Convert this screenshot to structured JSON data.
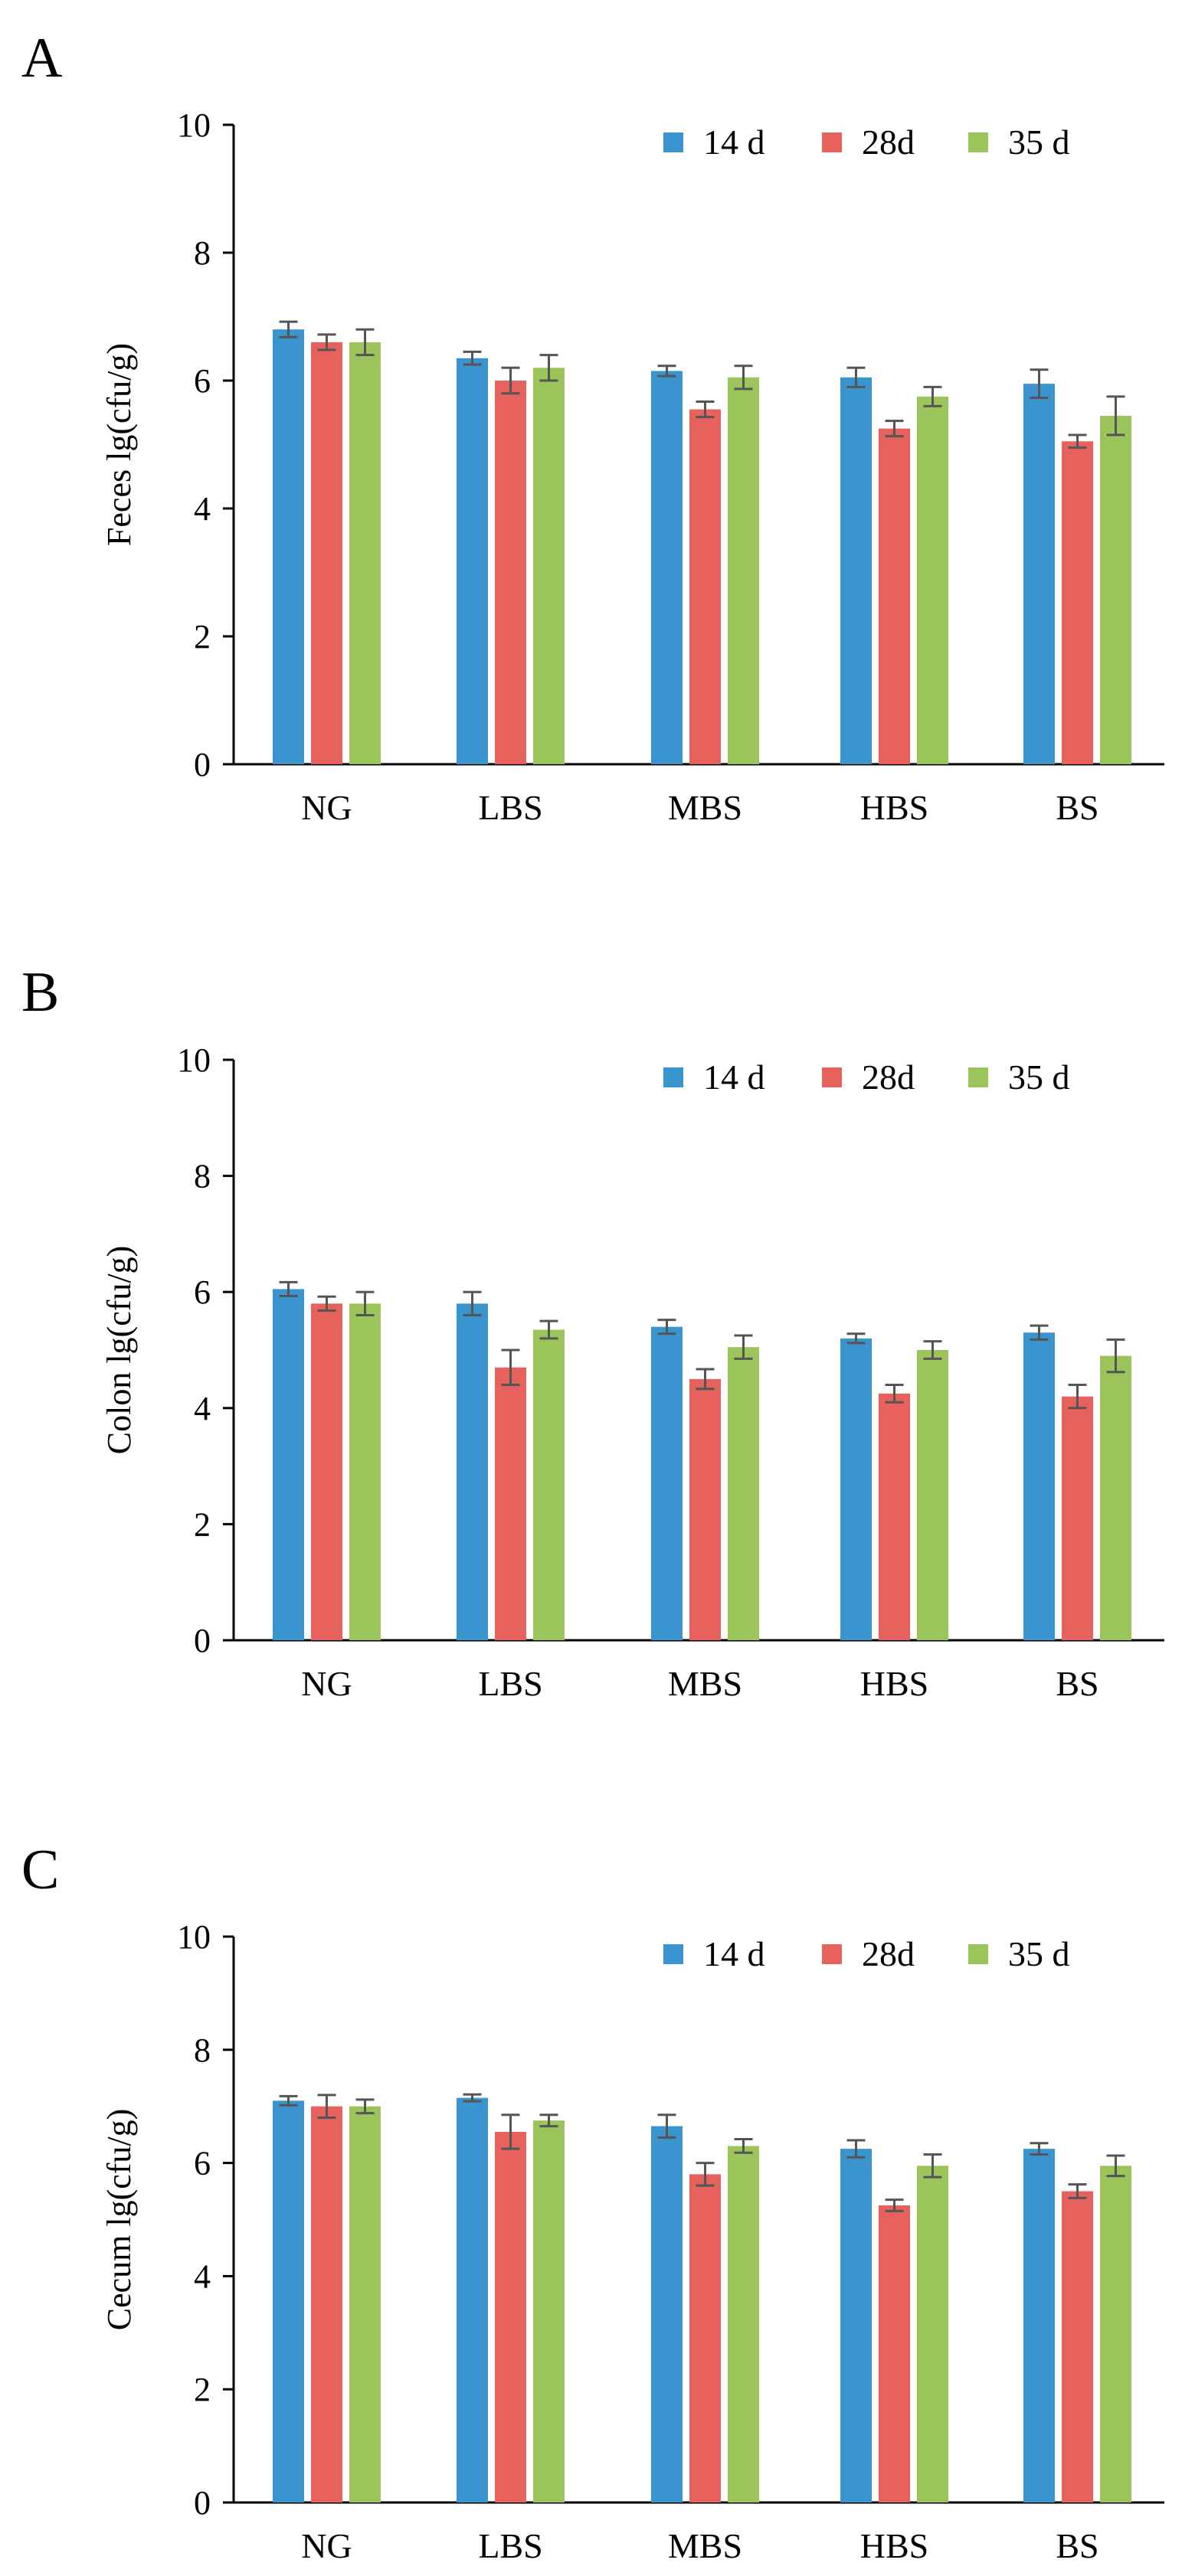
{
  "colors": {
    "series_14d": "#3a95cf",
    "series_28d": "#e8625d",
    "series_35d": "#9bc45b",
    "error_bar": "#555555",
    "axis": "#000000"
  },
  "chart_data": [
    {
      "type": "bar",
      "panel": "A",
      "ylabel": "Feces lg(cfu/g)",
      "ylim": [
        0,
        10
      ],
      "yticks": [
        "0",
        "2",
        "4",
        "6",
        "8",
        "10"
      ],
      "categories": [
        "NG",
        "LBS",
        "MBS",
        "HBS",
        "BS"
      ],
      "legend_position": "top-right",
      "grid": false,
      "series": [
        {
          "name": "14 d",
          "values": [
            6.8,
            6.35,
            6.15,
            6.05,
            5.95
          ],
          "errors": [
            0.12,
            0.1,
            0.08,
            0.15,
            0.22
          ]
        },
        {
          "name": "28d",
          "values": [
            6.6,
            6.0,
            5.55,
            5.25,
            5.05
          ],
          "errors": [
            0.12,
            0.2,
            0.12,
            0.12,
            0.1
          ]
        },
        {
          "name": "35 d",
          "values": [
            6.6,
            6.2,
            6.05,
            5.75,
            5.45
          ],
          "errors": [
            0.2,
            0.2,
            0.18,
            0.15,
            0.3
          ]
        }
      ]
    },
    {
      "type": "bar",
      "panel": "B",
      "ylabel": "Colon lg(cfu/g)",
      "ylim": [
        0,
        10
      ],
      "yticks": [
        "0",
        "2",
        "4",
        "6",
        "8",
        "10"
      ],
      "categories": [
        "NG",
        "LBS",
        "MBS",
        "HBS",
        "BS"
      ],
      "legend_position": "top-right",
      "grid": false,
      "series": [
        {
          "name": "14 d",
          "values": [
            6.05,
            5.8,
            5.4,
            5.2,
            5.3
          ],
          "errors": [
            0.12,
            0.2,
            0.12,
            0.08,
            0.12
          ]
        },
        {
          "name": "28d",
          "values": [
            5.8,
            4.7,
            4.5,
            4.25,
            4.2
          ],
          "errors": [
            0.12,
            0.3,
            0.17,
            0.15,
            0.2
          ]
        },
        {
          "name": "35 d",
          "values": [
            5.8,
            5.35,
            5.05,
            5.0,
            4.9
          ],
          "errors": [
            0.2,
            0.15,
            0.2,
            0.15,
            0.28
          ]
        }
      ]
    },
    {
      "type": "bar",
      "panel": "C",
      "ylabel": "Cecum lg(cfu/g)",
      "ylim": [
        0,
        10
      ],
      "yticks": [
        "0",
        "2",
        "4",
        "6",
        "8",
        "10"
      ],
      "categories": [
        "NG",
        "LBS",
        "MBS",
        "HBS",
        "BS"
      ],
      "legend_position": "top-right",
      "grid": false,
      "series": [
        {
          "name": "14 d",
          "values": [
            7.1,
            7.15,
            6.65,
            6.25,
            6.25
          ],
          "errors": [
            0.08,
            0.06,
            0.2,
            0.15,
            0.1
          ]
        },
        {
          "name": "28d",
          "values": [
            7.0,
            6.55,
            5.8,
            5.25,
            5.5
          ],
          "errors": [
            0.2,
            0.3,
            0.2,
            0.1,
            0.12
          ]
        },
        {
          "name": "35 d",
          "values": [
            7.0,
            6.75,
            6.3,
            5.95,
            5.95
          ],
          "errors": [
            0.12,
            0.1,
            0.12,
            0.2,
            0.18
          ]
        }
      ]
    }
  ]
}
